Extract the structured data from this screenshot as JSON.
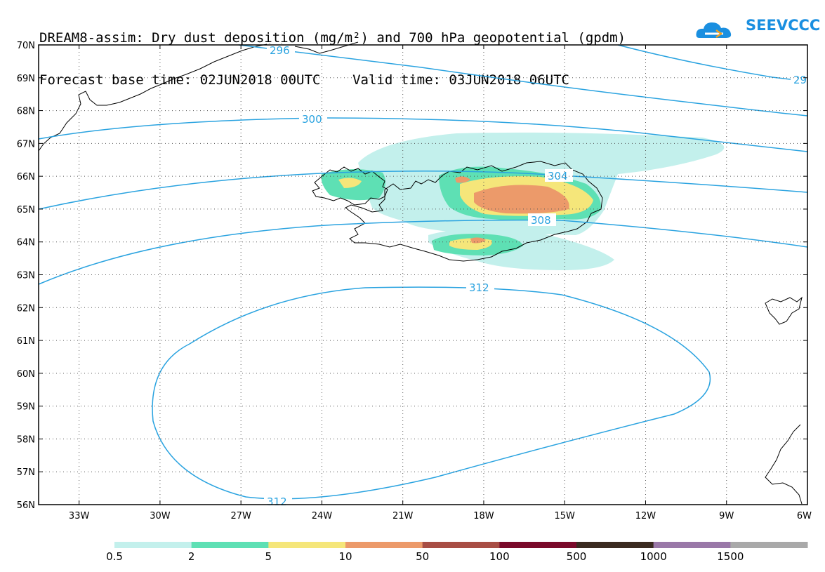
{
  "title": {
    "line1": "DREAM8-assim: Dry dust deposition (mg/m²) and 700 hPa geopotential (gpdm)",
    "line2": "Forecast base time: 02JUN2018 00UTC    Valid time: 03JUN2018 06UTC"
  },
  "logo": {
    "text": "SEEVCCC",
    "color": "#1a8fe0"
  },
  "map": {
    "lat_range": [
      56,
      70
    ],
    "lon_range": [
      -34.5,
      -6
    ],
    "lat_labels": [
      "70N",
      "69N",
      "68N",
      "67N",
      "66N",
      "65N",
      "64N",
      "63N",
      "62N",
      "61N",
      "60N",
      "59N",
      "58N",
      "57N",
      "56N"
    ],
    "lat_values": [
      70,
      69,
      68,
      67,
      66,
      65,
      64,
      63,
      62,
      61,
      60,
      59,
      58,
      57,
      56
    ],
    "lon_labels": [
      "33W",
      "30W",
      "27W",
      "24W",
      "21W",
      "18W",
      "15W",
      "12W",
      "9W",
      "6W"
    ],
    "lon_values": [
      -33,
      -30,
      -27,
      -24,
      -21,
      -18,
      -15,
      -12,
      -9,
      -6
    ],
    "contour_color": "#2aa3e0",
    "contour_labels": [
      "296",
      "29",
      "300",
      "304",
      "308",
      "312",
      "312"
    ]
  },
  "colorbar": {
    "labels": [
      "0.5",
      "2",
      "5",
      "10",
      "50",
      "100",
      "500",
      "1000",
      "1500"
    ],
    "colors": [
      "#c3f0ec",
      "#5ee0b4",
      "#f5e67a",
      "#ec9a6a",
      "#a84e45",
      "#7a0a2a",
      "#3a2a20",
      "#9a78a8",
      "#a9a9a9"
    ]
  }
}
